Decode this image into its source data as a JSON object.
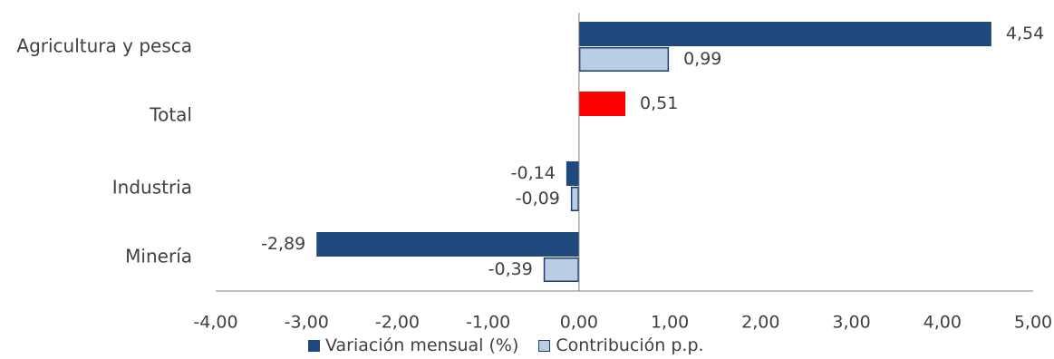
{
  "colors": {
    "variacion": "#1F497D",
    "contribucion": "#B9CDE5",
    "contribucion_border": "#1F3E70",
    "total": "#FF0000",
    "axis": "#7F7F7F"
  },
  "chart_data": {
    "type": "bar",
    "orientation": "horizontal",
    "categories": [
      "Agricultura y pesca",
      "Total",
      "Industria",
      "Minería"
    ],
    "series": [
      {
        "name": "Variación mensual (%)",
        "values": [
          4.54,
          0.51,
          -0.14,
          -2.89
        ]
      },
      {
        "name": "Contribución p.p.",
        "values": [
          0.99,
          null,
          -0.09,
          -0.39
        ]
      }
    ],
    "value_labels": {
      "variacion": [
        "4,54",
        "0,51",
        "-0,14",
        "-2,89"
      ],
      "contribucion": [
        "0,99",
        null,
        "-0,09",
        "-0,39"
      ]
    },
    "xlim": [
      -4,
      5
    ],
    "xticks": [
      -4,
      -3,
      -2,
      -1,
      0,
      1,
      2,
      3,
      4,
      5
    ],
    "xtick_labels": [
      "-4,00",
      "-3,00",
      "-2,00",
      "-1,00",
      "0,00",
      "1,00",
      "2,00",
      "3,00",
      "4,00",
      "5,00"
    ],
    "grid": false,
    "legend_position": "bottom"
  }
}
